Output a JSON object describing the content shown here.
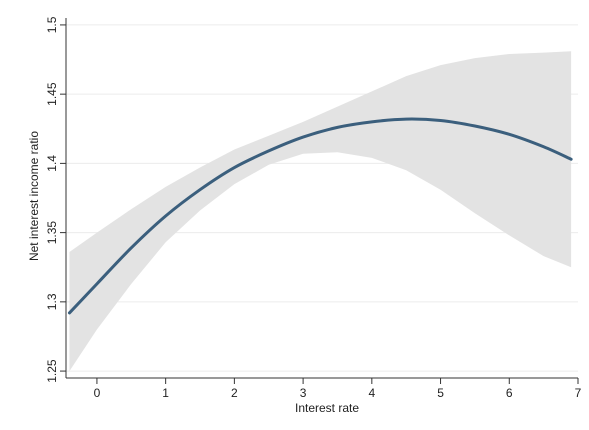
{
  "chart_data": {
    "type": "line",
    "title": "",
    "xlabel": "Interest rate",
    "ylabel": "Net interest income ratio",
    "xlim": [
      -0.45,
      7.0
    ],
    "ylim": [
      1.245,
      1.505
    ],
    "xticks": [
      0,
      1,
      2,
      3,
      4,
      5,
      6,
      7
    ],
    "xtick_labels": [
      "0",
      "1",
      "2",
      "3",
      "4",
      "5",
      "6",
      "7"
    ],
    "yticks": [
      1.25,
      1.3,
      1.35,
      1.4,
      1.45,
      1.5
    ],
    "ytick_labels": [
      "1.25",
      "1.3",
      "1.35",
      "1.4",
      "1.45",
      "1.5"
    ],
    "grid": true,
    "colors": {
      "line": "#3b5f7d",
      "band": "#e3e3e3",
      "grid": "#ececec",
      "axis": "#333333"
    },
    "series": [
      {
        "x": [
          -0.4,
          0,
          0.5,
          1,
          1.5,
          2,
          2.5,
          3,
          3.5,
          4,
          4.5,
          5,
          5.5,
          6,
          6.5,
          6.9
        ],
        "y": [
          1.292,
          1.313,
          1.339,
          1.362,
          1.381,
          1.397,
          1.409,
          1.419,
          1.426,
          1.43,
          1.432,
          1.431,
          1.427,
          1.421,
          1.412,
          1.403
        ],
        "lower": [
          1.25,
          1.28,
          1.313,
          1.343,
          1.366,
          1.385,
          1.399,
          1.407,
          1.408,
          1.404,
          1.395,
          1.381,
          1.364,
          1.348,
          1.333,
          1.325
        ],
        "upper": [
          1.336,
          1.35,
          1.367,
          1.383,
          1.397,
          1.41,
          1.42,
          1.43,
          1.441,
          1.452,
          1.463,
          1.471,
          1.476,
          1.479,
          1.48,
          1.481
        ]
      }
    ]
  }
}
